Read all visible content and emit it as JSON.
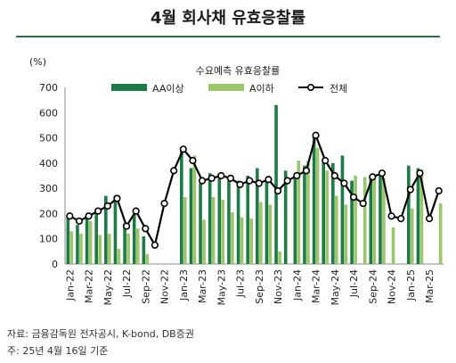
{
  "title": "4월 회사채 유효응찰률",
  "source": "자료: 금융감독원 전자공시, K-bond, DB증권",
  "note": "주: 25년 4월 16일 기준",
  "colors": {
    "aa": "#1e7b46",
    "a": "#9bc66b",
    "total_line": "#000000",
    "total_marker_fill": "#ffffff",
    "title_rule": "#2f6b3c"
  },
  "chart_data": {
    "type": "bar",
    "title": "수요예측 유효응찰률",
    "unit_label": "(%)",
    "ylim": [
      0,
      700
    ],
    "yticks": [
      0,
      100,
      200,
      300,
      400,
      500,
      600,
      700
    ],
    "grid": false,
    "legend_position": "top",
    "x_tick_labels": [
      "Jan-22",
      "Mar-22",
      "May-22",
      "Jul-22",
      "Sep-22",
      "Nov-22",
      "Jan-23",
      "Mar-23",
      "May-23",
      "Jul-23",
      "Sep-23",
      "Nov-23",
      "Jan-24",
      "Mar-24",
      "May-24",
      "Jul-24",
      "Sep-24",
      "Nov-24",
      "Jan-25",
      "Mar-25"
    ],
    "categories": [
      "Jan-22",
      "Feb-22",
      "Mar-22",
      "Apr-22",
      "May-22",
      "Jun-22",
      "Jul-22",
      "Aug-22",
      "Sep-22",
      "Oct-22",
      "Nov-22",
      "Dec-22",
      "Jan-23",
      "Feb-23",
      "Mar-23",
      "Apr-23",
      "May-23",
      "Jun-23",
      "Jul-23",
      "Aug-23",
      "Sep-23",
      "Oct-23",
      "Nov-23",
      "Dec-23",
      "Jan-24",
      "Feb-24",
      "Mar-24",
      "Apr-24",
      "May-24",
      "Jun-24",
      "Jul-24",
      "Aug-24",
      "Sep-24",
      "Oct-24",
      "Nov-24",
      "Dec-24",
      "Jan-25",
      "Feb-25",
      "Mar-25",
      "Apr-25"
    ],
    "series": [
      {
        "name": "AA이상",
        "kind": "bar",
        "values": [
          185,
          155,
          190,
          220,
          270,
          270,
          160,
          200,
          110,
          0,
          0,
          0,
          450,
          380,
          320,
          360,
          360,
          330,
          330,
          350,
          380,
          330,
          630,
          370,
          360,
          390,
          510,
          400,
          400,
          430,
          330,
          0,
          340,
          360,
          0,
          0,
          390,
          380,
          0,
          0
        ]
      },
      {
        "name": "A이하",
        "kind": "bar",
        "values": [
          130,
          120,
          170,
          115,
          120,
          60,
          120,
          140,
          40,
          0,
          0,
          0,
          265,
          430,
          175,
          265,
          255,
          205,
          185,
          180,
          245,
          235,
          50,
          0,
          410,
          410,
          460,
          370,
          270,
          235,
          350,
          345,
          355,
          340,
          145,
          0,
          220,
          375,
          0,
          240
        ]
      },
      {
        "name": "전체",
        "kind": "line",
        "values": [
          190,
          170,
          190,
          210,
          230,
          260,
          150,
          210,
          140,
          75,
          240,
          370,
          455,
          410,
          330,
          340,
          350,
          340,
          315,
          330,
          320,
          335,
          290,
          330,
          350,
          370,
          510,
          410,
          350,
          320,
          265,
          240,
          345,
          360,
          190,
          180,
          295,
          360,
          180,
          290
        ]
      }
    ]
  }
}
